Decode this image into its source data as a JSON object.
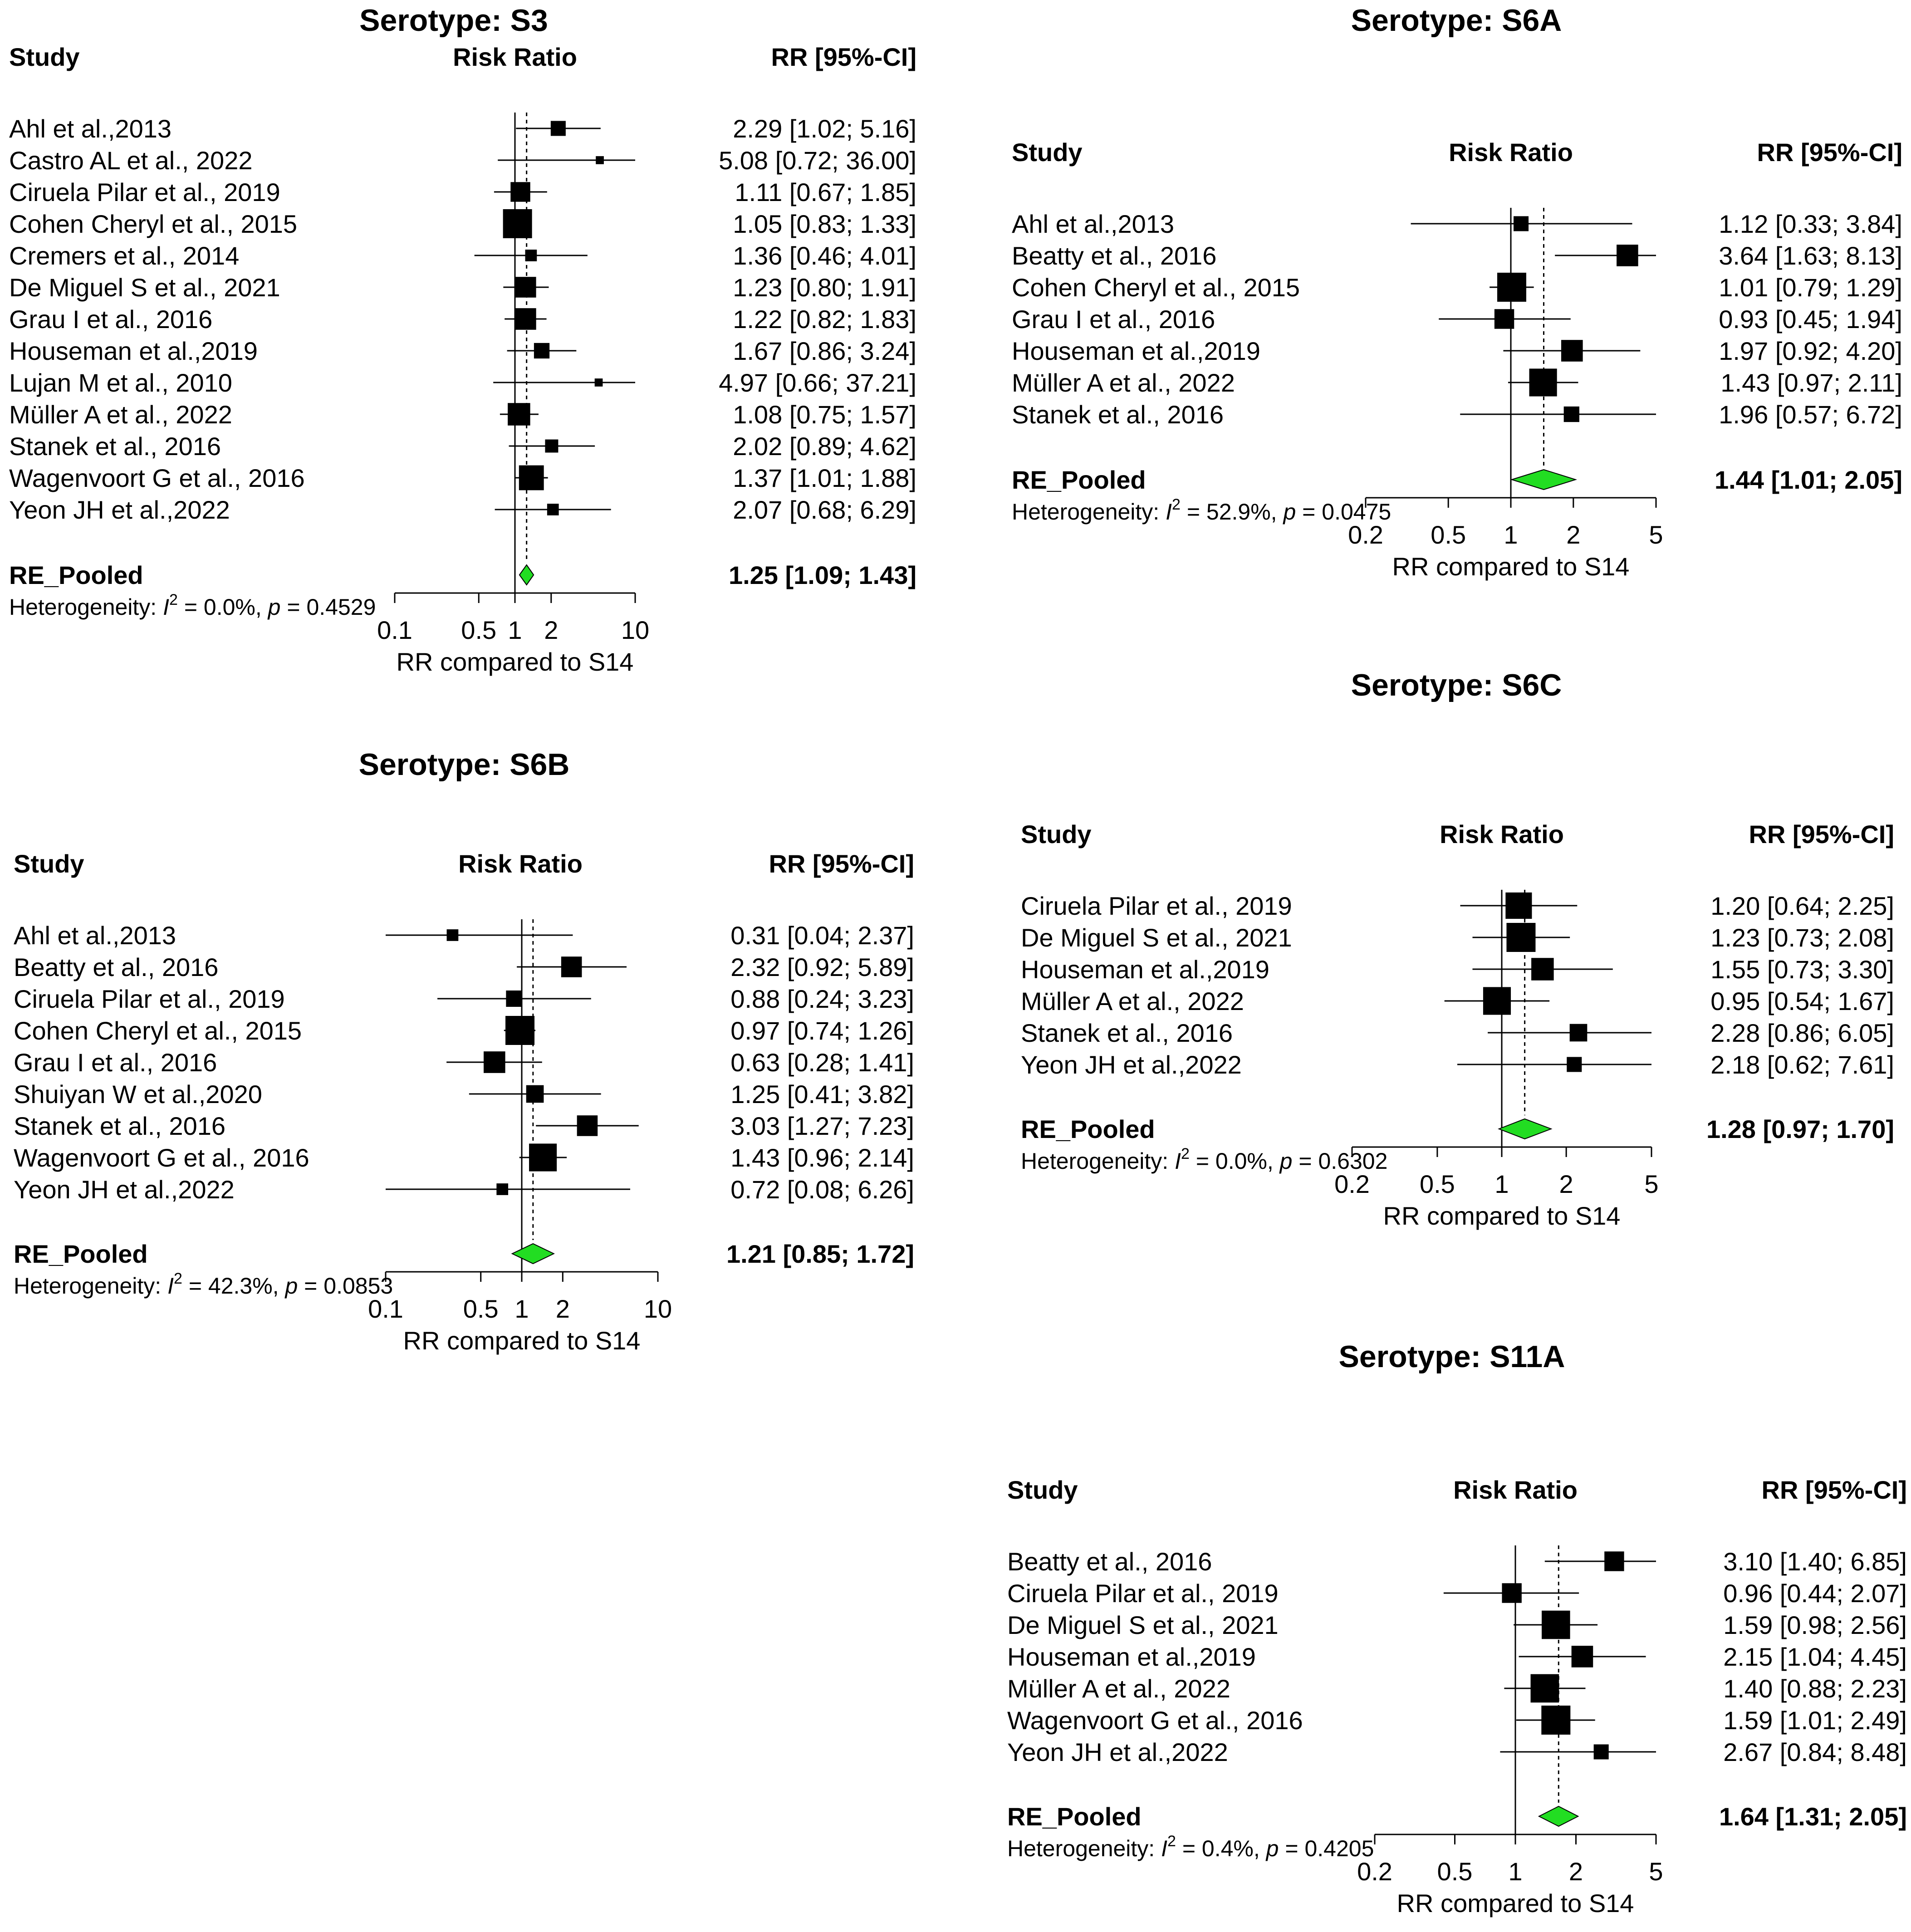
{
  "chart_data": [
    {
      "type": "forest",
      "title": "Serotype: S3",
      "header": {
        "study": "Study",
        "effect": "Risk Ratio",
        "ci": "RR [95%-CI]"
      },
      "studies": [
        {
          "label": "Ahl et al.,2013",
          "rr": 2.29,
          "lo": 1.02,
          "hi": 5.16,
          "ci_text": "2.29 [1.02;  5.16]",
          "weight": 0.2
        },
        {
          "label": "Castro AL et al., 2022",
          "rr": 5.08,
          "lo": 0.72,
          "hi": 36.0,
          "ci_text": "5.08 [0.72; 36.00]",
          "weight": 0.03
        },
        {
          "label": "Ciruela Pilar et al., 2019",
          "rr": 1.11,
          "lo": 0.67,
          "hi": 1.85,
          "ci_text": "1.11 [0.67;  1.85]",
          "weight": 0.4
        },
        {
          "label": "Cohen Cheryl et al., 2015",
          "rr": 1.05,
          "lo": 0.83,
          "hi": 1.33,
          "ci_text": "1.05 [0.83;  1.33]",
          "weight": 1.0
        },
        {
          "label": "Cremers et al., 2014",
          "rr": 1.36,
          "lo": 0.46,
          "hi": 4.01,
          "ci_text": "1.36 [0.46;  4.01]",
          "weight": 0.1
        },
        {
          "label": "De Miguel S et al., 2021",
          "rr": 1.23,
          "lo": 0.8,
          "hi": 1.91,
          "ci_text": "1.23 [0.80;  1.91]",
          "weight": 0.45
        },
        {
          "label": "Grau I et al., 2016",
          "rr": 1.22,
          "lo": 0.82,
          "hi": 1.83,
          "ci_text": "1.22 [0.82;  1.83]",
          "weight": 0.5
        },
        {
          "label": "Houseman et al.,2019",
          "rr": 1.67,
          "lo": 0.86,
          "hi": 3.24,
          "ci_text": "1.67 [0.86;  3.24]",
          "weight": 0.22
        },
        {
          "label": "Lujan M et al., 2010",
          "rr": 4.97,
          "lo": 0.66,
          "hi": 37.21,
          "ci_text": "4.97 [0.66; 37.21]",
          "weight": 0.03
        },
        {
          "label": "Müller A et al., 2022",
          "rr": 1.08,
          "lo": 0.75,
          "hi": 1.57,
          "ci_text": "1.08 [0.75;  1.57]",
          "weight": 0.55
        },
        {
          "label": "Stanek et al., 2016",
          "rr": 2.02,
          "lo": 0.89,
          "hi": 4.62,
          "ci_text": "2.02 [0.89;  4.62]",
          "weight": 0.14
        },
        {
          "label": "Wagenvoort G et al., 2016",
          "rr": 1.37,
          "lo": 1.01,
          "hi": 1.88,
          "ci_text": "1.37 [1.01;  1.88]",
          "weight": 0.7
        },
        {
          "label": "Yeon JH et al.,2022",
          "rr": 2.07,
          "lo": 0.68,
          "hi": 6.29,
          "ci_text": "2.07 [0.68;  6.29]",
          "weight": 0.1
        }
      ],
      "pooled": {
        "label": "RE_Pooled",
        "rr": 1.25,
        "lo": 1.09,
        "hi": 1.43,
        "ci_text": "1.25 [1.09;  1.43]"
      },
      "heterogeneity": {
        "prefix": "Heterogeneity: ",
        "i2_symbol": "I",
        "i2_sup": "2",
        "i2_rest": " = 0.0%, ",
        "p_symbol": "p",
        "p_rest": " = 0.4529"
      },
      "x_axis": {
        "scale": "log",
        "range": [
          0.1,
          10
        ],
        "ticks": [
          0.1,
          0.5,
          1,
          2,
          10
        ],
        "tick_labels": [
          "0.1",
          "0.5",
          "1",
          "2",
          "10"
        ],
        "label": "RR compared to S14"
      }
    },
    {
      "type": "forest",
      "title": "Serotype: S6A",
      "header": {
        "study": "Study",
        "effect": "Risk Ratio",
        "ci": "RR [95%-CI]"
      },
      "studies": [
        {
          "label": "Ahl et al.,2013",
          "rr": 1.12,
          "lo": 0.33,
          "hi": 3.84,
          "ci_text": "1.12 [0.33; 3.84]",
          "weight": 0.2
        },
        {
          "label": "Beatty et al., 2016",
          "rr": 3.64,
          "lo": 1.63,
          "hi": 8.13,
          "ci_text": "3.64 [1.63; 8.13]",
          "weight": 0.5
        },
        {
          "label": "Cohen Cheryl et al., 2015",
          "rr": 1.01,
          "lo": 0.79,
          "hi": 1.29,
          "ci_text": "1.01 [0.79; 1.29]",
          "weight": 1.0
        },
        {
          "label": "Grau I et al., 2016",
          "rr": 0.93,
          "lo": 0.45,
          "hi": 1.94,
          "ci_text": "0.93 [0.45; 1.94]",
          "weight": 0.4
        },
        {
          "label": "Houseman et al.,2019",
          "rr": 1.97,
          "lo": 0.92,
          "hi": 4.2,
          "ci_text": "1.97 [0.92; 4.20]",
          "weight": 0.5
        },
        {
          "label": "Müller A et al., 2022",
          "rr": 1.43,
          "lo": 0.97,
          "hi": 2.11,
          "ci_text": "1.43 [0.97; 2.11]",
          "weight": 0.9
        },
        {
          "label": "Stanek et al., 2016",
          "rr": 1.96,
          "lo": 0.57,
          "hi": 6.72,
          "ci_text": "1.96 [0.57; 6.72]",
          "weight": 0.22
        }
      ],
      "pooled": {
        "label": "RE_Pooled",
        "rr": 1.44,
        "lo": 1.01,
        "hi": 2.05,
        "ci_text": "1.44 [1.01; 2.05]"
      },
      "heterogeneity": {
        "prefix": "Heterogeneity: ",
        "i2_symbol": "I",
        "i2_sup": "2",
        "i2_rest": " = 52.9%, ",
        "p_symbol": "p",
        "p_rest": " = 0.0475"
      },
      "x_axis": {
        "scale": "log",
        "range": [
          0.2,
          5
        ],
        "ticks": [
          0.2,
          0.5,
          1,
          2,
          5
        ],
        "tick_labels": [
          "0.2",
          "0.5",
          "1",
          "2",
          "5"
        ],
        "label": "RR compared to S14"
      }
    },
    {
      "type": "forest",
      "title": "Serotype: S6C",
      "header": {
        "study": "Study",
        "effect": "Risk Ratio",
        "ci": "RR [95%-CI]"
      },
      "studies": [
        {
          "label": "Ciruela Pilar et al., 2019",
          "rr": 1.2,
          "lo": 0.64,
          "hi": 2.25,
          "ci_text": "1.20 [0.64; 2.25]",
          "weight": 0.8
        },
        {
          "label": "De Miguel S et al., 2021",
          "rr": 1.23,
          "lo": 0.73,
          "hi": 2.08,
          "ci_text": "1.23 [0.73; 2.08]",
          "weight": 1.0
        },
        {
          "label": "Houseman et al.,2019",
          "rr": 1.55,
          "lo": 0.73,
          "hi": 3.3,
          "ci_text": "1.55 [0.73; 3.30]",
          "weight": 0.55
        },
        {
          "label": "Müller A et al., 2022",
          "rr": 0.95,
          "lo": 0.54,
          "hi": 1.67,
          "ci_text": "0.95 [0.54; 1.67]",
          "weight": 0.9
        },
        {
          "label": "Stanek et al., 2016",
          "rr": 2.28,
          "lo": 0.86,
          "hi": 6.05,
          "ci_text": "2.28 [0.86; 6.05]",
          "weight": 0.3
        },
        {
          "label": "Yeon JH et al.,2022",
          "rr": 2.18,
          "lo": 0.62,
          "hi": 7.61,
          "ci_text": "2.18 [0.62; 7.61]",
          "weight": 0.2
        }
      ],
      "pooled": {
        "label": "RE_Pooled",
        "rr": 1.28,
        "lo": 0.97,
        "hi": 1.7,
        "ci_text": "1.28 [0.97; 1.70]"
      },
      "heterogeneity": {
        "prefix": "Heterogeneity: ",
        "i2_symbol": "I",
        "i2_sup": "2",
        "i2_rest": " = 0.0%, ",
        "p_symbol": "p",
        "p_rest": " = 0.6302"
      },
      "x_axis": {
        "scale": "log",
        "range": [
          0.2,
          5
        ],
        "ticks": [
          0.2,
          0.5,
          1,
          2,
          5
        ],
        "tick_labels": [
          "0.2",
          "0.5",
          "1",
          "2",
          "5"
        ],
        "label": "RR compared to S14"
      }
    },
    {
      "type": "forest",
      "title": "Serotype: S6B",
      "header": {
        "study": "Study",
        "effect": "Risk Ratio",
        "ci": "RR [95%-CI]"
      },
      "studies": [
        {
          "label": "Ahl et al.,2013",
          "rr": 0.31,
          "lo": 0.04,
          "hi": 2.37,
          "ci_text": "0.31 [0.04; 2.37]",
          "weight": 0.1
        },
        {
          "label": "Beatty et al., 2016",
          "rr": 2.32,
          "lo": 0.92,
          "hi": 5.89,
          "ci_text": "2.32 [0.92; 5.89]",
          "weight": 0.45
        },
        {
          "label": "Ciruela Pilar et al., 2019",
          "rr": 0.88,
          "lo": 0.24,
          "hi": 3.23,
          "ci_text": "0.88 [0.24; 3.23]",
          "weight": 0.25
        },
        {
          "label": "Cohen Cheryl et al., 2015",
          "rr": 0.97,
          "lo": 0.74,
          "hi": 1.26,
          "ci_text": "0.97 [0.74; 1.26]",
          "weight": 1.0
        },
        {
          "label": "Grau I et al., 2016",
          "rr": 0.63,
          "lo": 0.28,
          "hi": 1.41,
          "ci_text": "0.63 [0.28; 1.41]",
          "weight": 0.5
        },
        {
          "label": "Shuiyan W et al.,2020",
          "rr": 1.25,
          "lo": 0.41,
          "hi": 3.82,
          "ci_text": "1.25 [0.41; 3.82]",
          "weight": 0.3
        },
        {
          "label": "Stanek et al., 2016",
          "rr": 3.03,
          "lo": 1.27,
          "hi": 7.23,
          "ci_text": "3.03 [1.27; 7.23]",
          "weight": 0.45
        },
        {
          "label": "Wagenvoort G et al., 2016",
          "rr": 1.43,
          "lo": 0.96,
          "hi": 2.14,
          "ci_text": "1.43 [0.96; 2.14]",
          "weight": 0.9
        },
        {
          "label": "Yeon JH et al.,2022",
          "rr": 0.72,
          "lo": 0.08,
          "hi": 6.26,
          "ci_text": "0.72 [0.08; 6.26]",
          "weight": 0.1
        }
      ],
      "pooled": {
        "label": "RE_Pooled",
        "rr": 1.21,
        "lo": 0.85,
        "hi": 1.72,
        "ci_text": "1.21 [0.85; 1.72]"
      },
      "heterogeneity": {
        "prefix": "Heterogeneity: ",
        "i2_symbol": "I",
        "i2_sup": "2",
        "i2_rest": " = 42.3%, ",
        "p_symbol": "p",
        "p_rest": " = 0.0853"
      },
      "x_axis": {
        "scale": "log",
        "range": [
          0.1,
          10
        ],
        "ticks": [
          0.1,
          0.5,
          1,
          2,
          10
        ],
        "tick_labels": [
          "0.1",
          "0.5",
          "1",
          "2",
          "10"
        ],
        "label": "RR compared to S14"
      }
    },
    {
      "type": "forest",
      "title": "Serotype: S11A",
      "header": {
        "study": "Study",
        "effect": "Risk Ratio",
        "ci": "RR [95%-CI]"
      },
      "studies": [
        {
          "label": "Beatty et al., 2016",
          "rr": 3.1,
          "lo": 1.4,
          "hi": 6.85,
          "ci_text": "3.10 [1.40; 6.85]",
          "weight": 0.4
        },
        {
          "label": "Ciruela Pilar et al., 2019",
          "rr": 0.96,
          "lo": 0.44,
          "hi": 2.07,
          "ci_text": "0.96 [0.44; 2.07]",
          "weight": 0.4
        },
        {
          "label": "De Miguel S et al., 2021",
          "rr": 1.59,
          "lo": 0.98,
          "hi": 2.56,
          "ci_text": "1.59 [0.98; 2.56]",
          "weight": 0.95
        },
        {
          "label": "Houseman et al.,2019",
          "rr": 2.15,
          "lo": 1.04,
          "hi": 4.45,
          "ci_text": "2.15 [1.04; 4.45]",
          "weight": 0.5
        },
        {
          "label": "Müller A et al., 2022",
          "rr": 1.4,
          "lo": 0.88,
          "hi": 2.23,
          "ci_text": "1.40 [0.88; 2.23]",
          "weight": 0.95
        },
        {
          "label": "Wagenvoort G et al., 2016",
          "rr": 1.59,
          "lo": 1.01,
          "hi": 2.49,
          "ci_text": "1.59 [1.01; 2.49]",
          "weight": 1.0
        },
        {
          "label": "Yeon JH et al.,2022",
          "rr": 2.67,
          "lo": 0.84,
          "hi": 8.48,
          "ci_text": "2.67 [0.84; 8.48]",
          "weight": 0.2
        }
      ],
      "pooled": {
        "label": "RE_Pooled",
        "rr": 1.64,
        "lo": 1.31,
        "hi": 2.05,
        "ci_text": "1.64 [1.31; 2.05]"
      },
      "heterogeneity": {
        "prefix": "Heterogeneity: ",
        "i2_symbol": "I",
        "i2_sup": "2",
        "i2_rest": " = 0.4%, ",
        "p_symbol": "p",
        "p_rest": " = 0.4205"
      },
      "x_axis": {
        "scale": "log",
        "range": [
          0.2,
          5
        ],
        "ticks": [
          0.2,
          0.5,
          1,
          2,
          5
        ],
        "tick_labels": [
          "0.2",
          "0.5",
          "1",
          "2",
          "5"
        ],
        "label": "RR compared to S14"
      }
    }
  ],
  "style": {
    "diamond_fill": "#22DD22",
    "square_fill": "#000000",
    "line_color": "#000000",
    "background": "#FFFFFF"
  }
}
